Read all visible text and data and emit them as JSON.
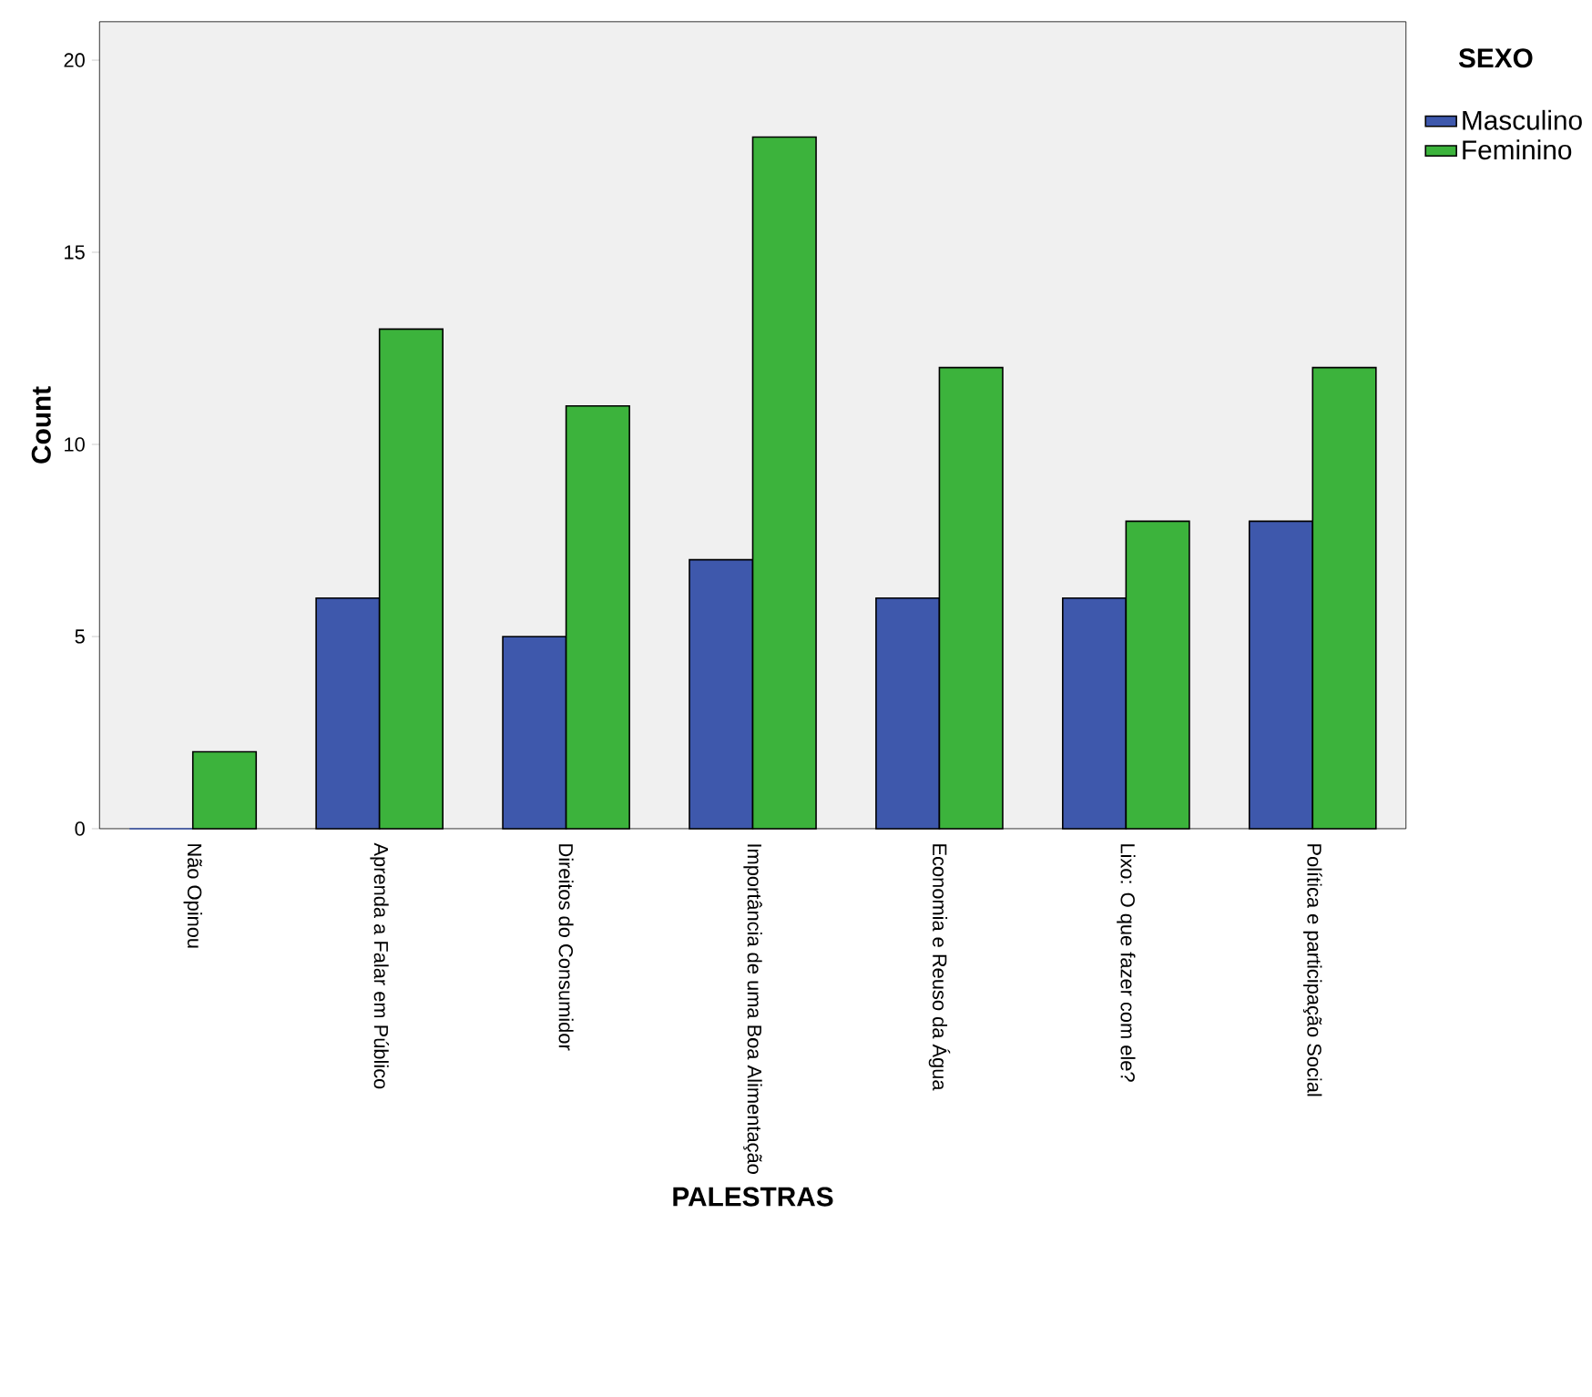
{
  "chart_data": {
    "type": "bar",
    "xlabel": "PALESTRAS",
    "ylabel": "Count",
    "legend_title": "SEXO",
    "categories": [
      "Não Opinou",
      "Aprenda a Falar em Público",
      "Direitos do Consumidor",
      "Importância de uma Boa Alimentação",
      "Economia e Reuso da Água",
      "Lixo: O que fazer com ele?",
      "Política e participação Social"
    ],
    "series": [
      {
        "name": "Masculino",
        "color": "#3e58ac",
        "values": [
          0,
          6,
          5,
          7,
          6,
          6,
          8
        ]
      },
      {
        "name": "Feminino",
        "color": "#3cb33c",
        "values": [
          2,
          13,
          11,
          18,
          12,
          8,
          12
        ]
      }
    ],
    "ylim": [
      0,
      21
    ],
    "yticks": [
      0,
      5,
      10,
      15,
      20
    ],
    "legend": "right"
  }
}
